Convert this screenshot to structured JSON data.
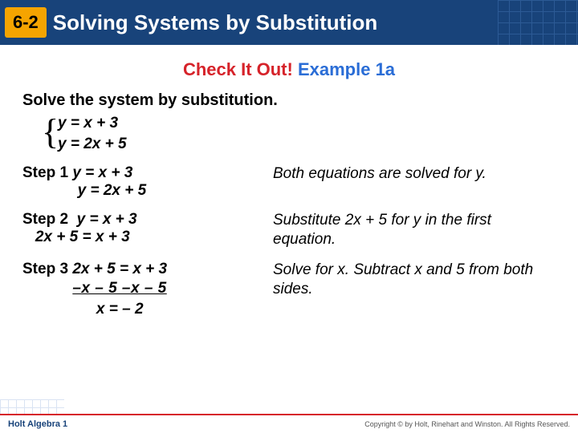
{
  "header": {
    "section_number": "6-2",
    "title": "Solving Systems by Substitution",
    "bg_color": "#18437a",
    "accent_color": "#f5a400"
  },
  "subtitle": {
    "red_text": "Check It Out!",
    "blue_text": "Example 1a",
    "red_color": "#d6232a",
    "blue_color": "#2a6dd6"
  },
  "instruction": "Solve the system by substitution.",
  "system": {
    "eq1": "y =  x + 3",
    "eq2": "y = 2x + 5"
  },
  "steps": [
    {
      "label": "Step 1",
      "math_lines": [
        "y =  x + 3",
        "y = 2x + 5"
      ],
      "explanation": "Both equations are solved for y."
    },
    {
      "label": "Step 2",
      "math_lines": [
        "y = x + 3",
        "2x + 5 = x + 3"
      ],
      "explanation": "Substitute 2x + 5 for y in the first equation."
    },
    {
      "label": "Step 3",
      "math_lines": [
        "2x + 5 = x + 3",
        "–x  – 5   –x – 5",
        "x = – 2"
      ],
      "explanation": "Solve for x. Subtract x and 5 from both sides."
    }
  ],
  "footer": {
    "left": "Holt Algebra 1",
    "right": "Copyright © by Holt, Rinehart and Winston. All Rights Reserved."
  },
  "colors": {
    "text": "#000000",
    "footer_border": "#d6232a"
  }
}
